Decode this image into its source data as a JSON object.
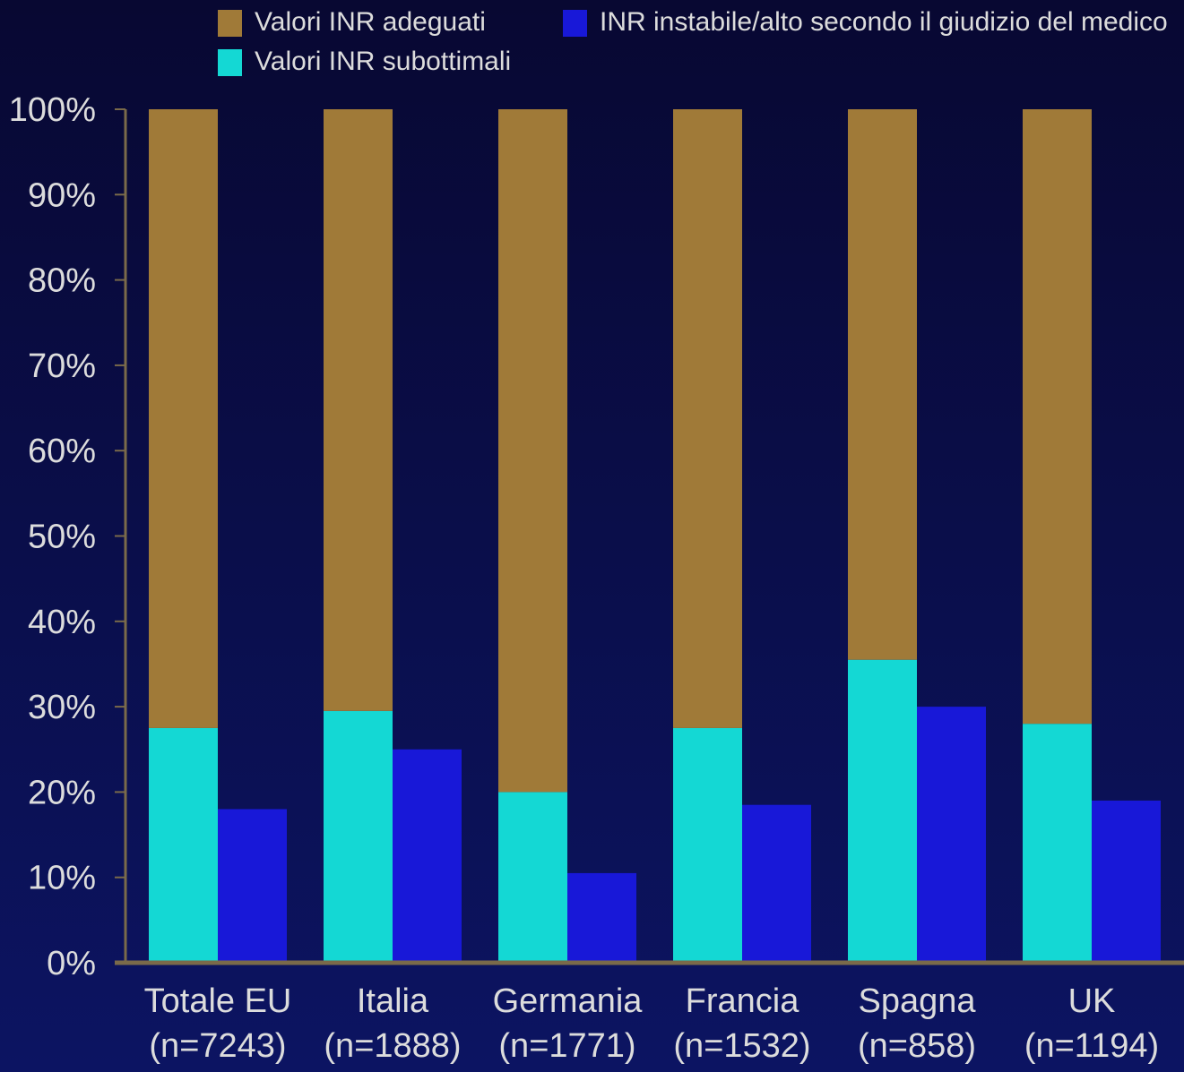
{
  "chart_data": {
    "type": "bar",
    "categories": [
      "Totale EU",
      "Italia",
      "Germania",
      "Francia",
      "Spagna",
      "UK"
    ],
    "category_notes": [
      "(n=7243)",
      "(n=1888)",
      "(n=1771)",
      "(n=1532)",
      "(n=858)",
      "(n=1194)"
    ],
    "series": [
      {
        "name": "Valori INR adeguati",
        "color": "#a07a38",
        "values": [
          72.5,
          70.5,
          80,
          72.5,
          64.5,
          72
        ]
      },
      {
        "name": "Valori INR subottimali",
        "color": "#14d8d4",
        "values": [
          27.5,
          29.5,
          20,
          27.5,
          35.5,
          28
        ]
      },
      {
        "name": "INR instabile/alto secondo il giudizio del medico",
        "color": "#1818d8",
        "values": [
          18,
          25,
          10.5,
          18.5,
          30,
          19
        ]
      }
    ],
    "ylim": [
      0,
      100
    ],
    "yticks": [
      {
        "value": 0,
        "label": "0%"
      },
      {
        "value": 10,
        "label": "10%"
      },
      {
        "value": 20,
        "label": "20%"
      },
      {
        "value": 30,
        "label": "30%"
      },
      {
        "value": 40,
        "label": "40%"
      },
      {
        "value": 50,
        "label": "50%"
      },
      {
        "value": 60,
        "label": "60%"
      },
      {
        "value": 70,
        "label": "70%"
      },
      {
        "value": 80,
        "label": "80%"
      },
      {
        "value": 90,
        "label": "90%"
      },
      {
        "value": 100,
        "label": "100%"
      }
    ],
    "grid": false
  }
}
